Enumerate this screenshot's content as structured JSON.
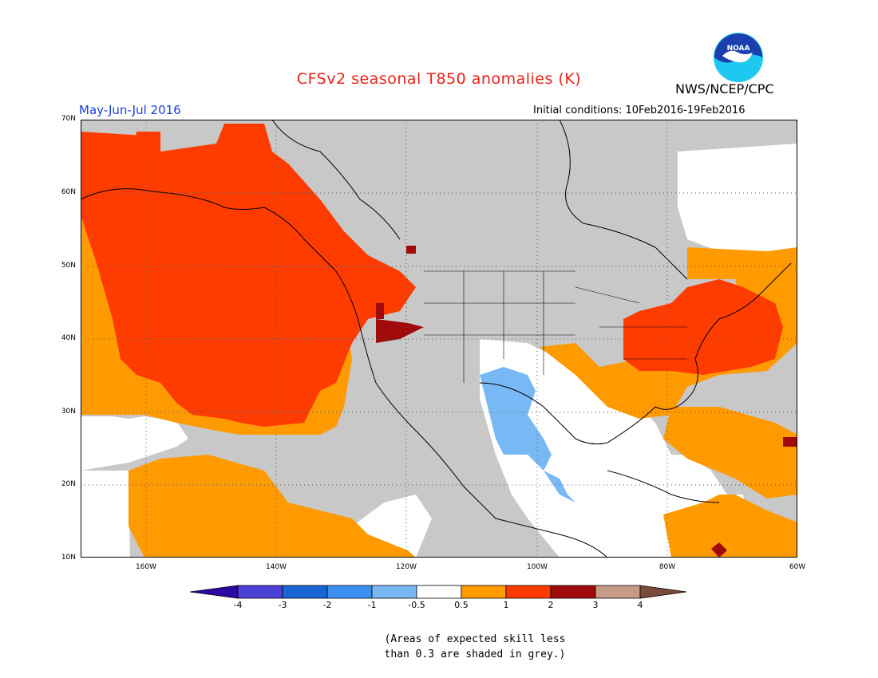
{
  "header": {
    "title": "CFSv2 seasonal T850 anomalies (K)",
    "agency": "NWS/NCEP/CPC",
    "logo_text": "NOAA",
    "season": "May-Jun-Jul 2016",
    "initial_conditions": "Initial conditions: 10Feb2016-19Feb2016"
  },
  "map": {
    "projection": "lat-lon",
    "lat_range": [
      10,
      70
    ],
    "lon_range": [
      -169,
      -60
    ],
    "lat_labels": [
      "70N",
      "60N",
      "50N",
      "40N",
      "30N",
      "20N",
      "10N"
    ],
    "lon_labels": [
      "160W",
      "140W",
      "120W",
      "100W",
      "80W",
      "60W"
    ],
    "grid": "dotted"
  },
  "colorbar": {
    "labels": [
      "-4",
      "-3",
      "-2",
      "-1",
      "-0.5",
      "0.5",
      "1",
      "2",
      "3",
      "4"
    ],
    "colors": [
      "#2a0aa0",
      "#4b3fd6",
      "#1a64d6",
      "#3c8ff0",
      "#78b8f5",
      "#ffffff",
      "#ff9a00",
      "#ff3c00",
      "#a00a0a",
      "#c89a88",
      "#7a4a3a"
    ]
  },
  "colors": {
    "grey_low_skill": "#c8c8c8",
    "ocean_white": "#ffffff",
    "title_red": "#e8231a",
    "season_blue": "#1a3de0"
  },
  "note": {
    "line1": "(Areas of expected skill less",
    "line2": "than 0.3 are shaded in grey.)"
  }
}
